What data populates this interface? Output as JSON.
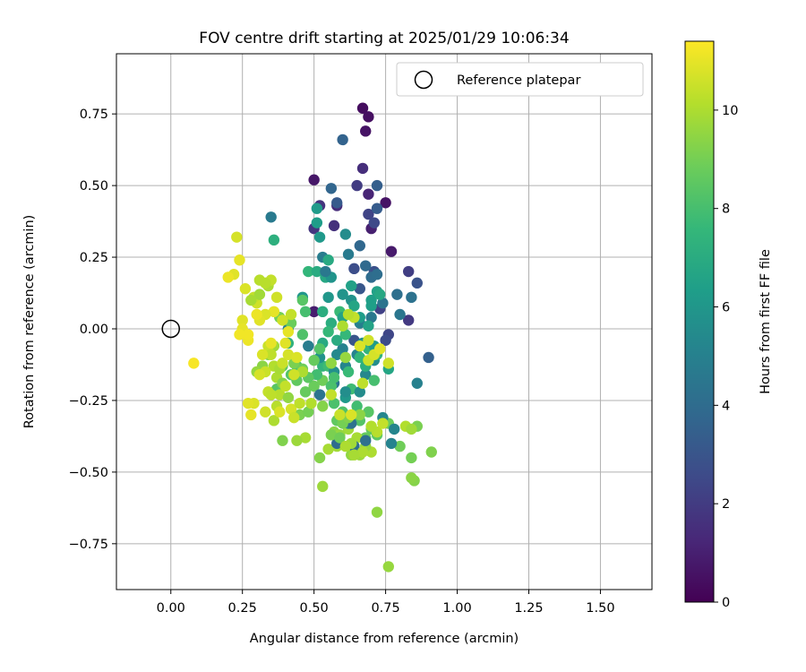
{
  "chart_data": {
    "type": "scatter",
    "title": "FOV centre drift starting at 2025/01/29 10:06:34",
    "xlabel": "Angular distance from reference (arcmin)",
    "ylabel": "Rotation from reference (arcmin)",
    "colorbar_label": "Hours from first FF file",
    "colormap": "viridis",
    "xlim": [
      -0.19,
      1.68
    ],
    "ylim": [
      -0.91,
      0.96
    ],
    "clim": [
      0,
      11.4
    ],
    "x_ticks": [
      "0.00",
      "0.25",
      "0.50",
      "0.75",
      "1.00",
      "1.25",
      "1.50"
    ],
    "y_ticks": [
      "−0.75",
      "−0.50",
      "−0.25",
      "0.00",
      "0.25",
      "0.50",
      "0.75"
    ],
    "colorbar_ticks": [
      "0",
      "2",
      "4",
      "6",
      "8",
      "10"
    ],
    "grid": true,
    "legend_position": "top-right",
    "legend": [
      "Reference platepar"
    ],
    "reference_point": {
      "x": 0.0,
      "y": 0.0
    },
    "points": [
      [
        0.67,
        0.77,
        0.4
      ],
      [
        0.69,
        0.74,
        0.5
      ],
      [
        0.68,
        0.69,
        0.6
      ],
      [
        0.5,
        0.52,
        0.7
      ],
      [
        0.75,
        0.44,
        0.6
      ],
      [
        0.77,
        0.27,
        0.8
      ],
      [
        0.5,
        0.06,
        0.9
      ],
      [
        0.7,
        0.35,
        1.0
      ],
      [
        0.69,
        0.47,
        1.2
      ],
      [
        0.67,
        0.56,
        1.5
      ],
      [
        0.57,
        0.36,
        1.6
      ],
      [
        0.58,
        0.43,
        1.4
      ],
      [
        0.52,
        0.43,
        1.7
      ],
      [
        0.5,
        0.35,
        1.8
      ],
      [
        0.65,
        0.5,
        2.0
      ],
      [
        0.83,
        0.03,
        1.9
      ],
      [
        0.83,
        0.2,
        2.1
      ],
      [
        0.73,
        0.07,
        2.2
      ],
      [
        0.69,
        0.4,
        2.3
      ],
      [
        0.71,
        0.37,
        2.5
      ],
      [
        0.76,
        -0.02,
        2.4
      ],
      [
        0.75,
        -0.04,
        2.6
      ],
      [
        0.64,
        0.21,
        2.7
      ],
      [
        0.71,
        0.2,
        2.8
      ],
      [
        0.86,
        0.16,
        2.9
      ],
      [
        0.64,
        -0.04,
        3.0
      ],
      [
        0.66,
        0.14,
        3.1
      ],
      [
        0.58,
        0.44,
        3.2
      ],
      [
        0.6,
        0.66,
        3.6
      ],
      [
        0.72,
        0.5,
        3.4
      ],
      [
        0.72,
        0.42,
        3.3
      ],
      [
        0.56,
        0.49,
        3.7
      ],
      [
        0.9,
        -0.1,
        3.5
      ],
      [
        0.66,
        0.29,
        3.8
      ],
      [
        0.68,
        0.22,
        3.9
      ],
      [
        0.7,
        0.18,
        4.0
      ],
      [
        0.72,
        0.19,
        4.1
      ],
      [
        0.79,
        0.12,
        4.2
      ],
      [
        0.84,
        0.11,
        4.3
      ],
      [
        0.74,
        0.09,
        4.4
      ],
      [
        0.8,
        0.05,
        4.5
      ],
      [
        0.7,
        0.04,
        4.6
      ],
      [
        0.62,
        0.26,
        4.7
      ],
      [
        0.53,
        0.25,
        4.8
      ],
      [
        0.66,
        0.02,
        4.9
      ],
      [
        0.6,
        -0.07,
        5.0
      ],
      [
        0.65,
        -0.09,
        5.1
      ],
      [
        0.61,
        -0.13,
        5.2
      ],
      [
        0.68,
        -0.16,
        5.3
      ],
      [
        0.58,
        -0.09,
        5.4
      ],
      [
        0.61,
        0.33,
        5.5
      ],
      [
        0.71,
        -0.11,
        5.6
      ],
      [
        0.67,
        -0.05,
        5.7
      ],
      [
        0.63,
        0.1,
        5.8
      ],
      [
        0.6,
        0.12,
        5.9
      ],
      [
        0.55,
        0.11,
        6.0
      ],
      [
        0.52,
        0.32,
        6.1
      ],
      [
        0.51,
        0.42,
        6.2
      ],
      [
        0.51,
        0.37,
        6.3
      ],
      [
        0.7,
        0.1,
        6.4
      ],
      [
        0.72,
        0.13,
        6.5
      ],
      [
        0.69,
        0.01,
        6.6
      ],
      [
        0.76,
        -0.14,
        6.7
      ],
      [
        0.73,
        0.12,
        6.8
      ],
      [
        0.53,
        -0.05,
        6.9
      ],
      [
        0.58,
        -0.04,
        7.0
      ],
      [
        0.56,
        0.02,
        7.1
      ],
      [
        0.36,
        0.31,
        7.2
      ],
      [
        0.41,
        -0.05,
        7.3
      ],
      [
        0.53,
        -0.13,
        7.4
      ],
      [
        0.48,
        0.2,
        7.5
      ],
      [
        0.55,
        -0.01,
        7.6
      ],
      [
        0.62,
        -0.15,
        7.7
      ],
      [
        0.63,
        -0.21,
        7.8
      ],
      [
        0.65,
        -0.27,
        7.9
      ],
      [
        0.71,
        -0.18,
        8.0
      ],
      [
        0.57,
        -0.26,
        8.1
      ],
      [
        0.6,
        -0.29,
        8.2
      ],
      [
        0.66,
        -0.32,
        8.3
      ],
      [
        0.69,
        -0.29,
        8.4
      ],
      [
        0.72,
        -0.37,
        8.5
      ],
      [
        0.7,
        -0.35,
        8.6
      ],
      [
        0.68,
        -0.38,
        8.7
      ],
      [
        0.76,
        -0.33,
        8.8
      ],
      [
        0.8,
        -0.41,
        8.9
      ],
      [
        0.84,
        -0.45,
        9.0
      ],
      [
        0.86,
        -0.34,
        9.1
      ],
      [
        0.91,
        -0.43,
        9.2
      ],
      [
        0.85,
        -0.53,
        9.3
      ],
      [
        0.84,
        -0.52,
        9.4
      ],
      [
        0.72,
        -0.64,
        9.5
      ],
      [
        0.76,
        -0.83,
        9.6
      ],
      [
        0.53,
        -0.55,
        9.7
      ],
      [
        0.58,
        -0.41,
        9.8
      ],
      [
        0.65,
        -0.38,
        9.9
      ],
      [
        0.7,
        -0.43,
        10.0
      ],
      [
        0.55,
        -0.42,
        9.9
      ],
      [
        0.62,
        -0.35,
        9.8
      ],
      [
        0.66,
        -0.44,
        9.7
      ],
      [
        0.68,
        -0.41,
        9.6
      ],
      [
        0.63,
        -0.44,
        9.5
      ],
      [
        0.57,
        -0.36,
        9.4
      ],
      [
        0.52,
        -0.45,
        9.3
      ],
      [
        0.39,
        -0.39,
        9.2
      ],
      [
        0.45,
        -0.3,
        9.1
      ],
      [
        0.48,
        -0.29,
        9.0
      ],
      [
        0.53,
        -0.18,
        8.9
      ],
      [
        0.5,
        -0.2,
        8.8
      ],
      [
        0.47,
        -0.22,
        8.7
      ],
      [
        0.44,
        -0.18,
        8.6
      ],
      [
        0.39,
        -0.13,
        8.5
      ],
      [
        0.37,
        -0.21,
        8.4
      ],
      [
        0.42,
        -0.16,
        8.3
      ],
      [
        0.46,
        -0.02,
        8.2
      ],
      [
        0.44,
        -0.13,
        8.1
      ],
      [
        0.47,
        0.06,
        8.0
      ],
      [
        0.51,
        -0.16,
        7.9
      ],
      [
        0.55,
        -0.13,
        7.8
      ],
      [
        0.59,
        0.06,
        7.7
      ],
      [
        0.61,
        -0.02,
        7.6
      ],
      [
        0.66,
        -0.1,
        7.5
      ],
      [
        0.69,
        -0.07,
        7.4
      ],
      [
        0.72,
        -0.09,
        7.3
      ],
      [
        0.68,
        -0.13,
        7.2
      ],
      [
        0.53,
        0.06,
        7.1
      ],
      [
        0.51,
        0.2,
        7.0
      ],
      [
        0.55,
        0.24,
        6.9
      ],
      [
        0.54,
        0.18,
        6.8
      ],
      [
        0.64,
        0.08,
        6.7
      ],
      [
        0.6,
        0.04,
        6.6
      ],
      [
        0.63,
        0.15,
        6.5
      ],
      [
        0.7,
        0.08,
        6.4
      ],
      [
        0.66,
        0.04,
        6.3
      ],
      [
        0.71,
        -0.06,
        6.2
      ],
      [
        0.61,
        -0.24,
        6.1
      ],
      [
        0.46,
        0.11,
        6.0
      ],
      [
        0.56,
        0.18,
        5.9
      ],
      [
        0.52,
        -0.1,
        5.8
      ],
      [
        0.57,
        -0.15,
        5.7
      ],
      [
        0.61,
        -0.22,
        5.6
      ],
      [
        0.66,
        -0.22,
        5.5
      ],
      [
        0.62,
        -0.33,
        5.4
      ],
      [
        0.74,
        -0.31,
        5.3
      ],
      [
        0.78,
        -0.35,
        5.2
      ],
      [
        0.77,
        -0.4,
        5.1
      ],
      [
        0.86,
        -0.19,
        5.0
      ],
      [
        0.41,
        0.0,
        4.9
      ],
      [
        0.48,
        -0.06,
        4.8
      ],
      [
        0.35,
        0.39,
        4.7
      ],
      [
        0.54,
        0.2,
        4.6
      ],
      [
        0.57,
        -0.19,
        4.5
      ],
      [
        0.52,
        -0.23,
        4.4
      ],
      [
        0.63,
        -0.33,
        4.3
      ],
      [
        0.68,
        -0.39,
        4.2
      ],
      [
        0.64,
        -0.41,
        4.1
      ],
      [
        0.58,
        -0.4,
        4.0
      ],
      [
        0.46,
        0.1,
        8.4
      ],
      [
        0.42,
        0.02,
        8.8
      ],
      [
        0.38,
        0.04,
        9.0
      ],
      [
        0.34,
        -0.09,
        9.2
      ],
      [
        0.32,
        -0.13,
        9.4
      ],
      [
        0.3,
        -0.15,
        9.6
      ],
      [
        0.36,
        -0.06,
        9.8
      ],
      [
        0.37,
        -0.17,
        10.0
      ],
      [
        0.38,
        -0.23,
        10.2
      ],
      [
        0.34,
        -0.22,
        10.4
      ],
      [
        0.33,
        -0.29,
        10.6
      ],
      [
        0.29,
        -0.26,
        10.8
      ],
      [
        0.28,
        -0.3,
        11.0
      ],
      [
        0.27,
        -0.26,
        10.9
      ],
      [
        0.42,
        -0.28,
        10.7
      ],
      [
        0.43,
        -0.31,
        10.5
      ],
      [
        0.45,
        -0.26,
        10.3
      ],
      [
        0.49,
        -0.26,
        10.1
      ],
      [
        0.47,
        -0.38,
        9.9
      ],
      [
        0.44,
        -0.39,
        9.7
      ],
      [
        0.41,
        -0.24,
        9.5
      ],
      [
        0.39,
        -0.19,
        9.3
      ],
      [
        0.43,
        -0.12,
        9.1
      ],
      [
        0.46,
        -0.14,
        8.9
      ],
      [
        0.5,
        -0.11,
        8.7
      ],
      [
        0.48,
        -0.17,
        8.5
      ],
      [
        0.52,
        -0.07,
        8.3
      ],
      [
        0.56,
        -0.2,
        8.1
      ],
      [
        0.57,
        -0.17,
        8.0
      ],
      [
        0.58,
        -0.32,
        8.6
      ],
      [
        0.6,
        -0.33,
        9.0
      ],
      [
        0.62,
        -0.31,
        9.2
      ],
      [
        0.66,
        -0.3,
        9.4
      ],
      [
        0.59,
        -0.37,
        9.6
      ],
      [
        0.63,
        -0.4,
        9.8
      ],
      [
        0.67,
        -0.43,
        10.0
      ],
      [
        0.72,
        -0.36,
        10.2
      ],
      [
        0.74,
        -0.33,
        10.4
      ],
      [
        0.7,
        -0.34,
        10.1
      ],
      [
        0.67,
        -0.19,
        10.3
      ],
      [
        0.69,
        -0.11,
        10.5
      ],
      [
        0.71,
        -0.09,
        10.7
      ],
      [
        0.73,
        -0.07,
        10.9
      ],
      [
        0.69,
        -0.04,
        10.6
      ],
      [
        0.66,
        -0.06,
        10.8
      ],
      [
        0.64,
        0.04,
        10.4
      ],
      [
        0.62,
        0.05,
        10.2
      ],
      [
        0.6,
        0.01,
        10.0
      ],
      [
        0.61,
        -0.1,
        9.6
      ],
      [
        0.56,
        -0.12,
        9.5
      ],
      [
        0.53,
        -0.27,
        9.3
      ],
      [
        0.56,
        -0.37,
        9.1
      ],
      [
        0.59,
        -0.38,
        8.9
      ],
      [
        0.61,
        -0.41,
        10.0
      ],
      [
        0.64,
        -0.44,
        9.9
      ],
      [
        0.46,
        -0.15,
        10.0
      ],
      [
        0.4,
        -0.05,
        10.9
      ],
      [
        0.41,
        -0.01,
        11.0
      ],
      [
        0.36,
        0.06,
        11.0
      ],
      [
        0.33,
        0.05,
        10.8
      ],
      [
        0.31,
        0.03,
        10.9
      ],
      [
        0.3,
        0.09,
        10.6
      ],
      [
        0.29,
        0.11,
        10.4
      ],
      [
        0.31,
        0.17,
        10.2
      ],
      [
        0.34,
        0.15,
        10.0
      ],
      [
        0.31,
        0.12,
        9.8
      ],
      [
        0.28,
        0.1,
        9.9
      ],
      [
        0.26,
        0.14,
        10.8
      ],
      [
        0.22,
        0.19,
        10.9
      ],
      [
        0.24,
        0.24,
        11.0
      ],
      [
        0.2,
        0.18,
        11.1
      ],
      [
        0.23,
        0.32,
        10.7
      ],
      [
        0.25,
        0.03,
        10.9
      ],
      [
        0.25,
        0.0,
        11.0
      ],
      [
        0.27,
        -0.04,
        11.1
      ],
      [
        0.24,
        -0.02,
        11.2
      ],
      [
        0.08,
        -0.12,
        11.3
      ],
      [
        0.34,
        -0.06,
        10.5
      ],
      [
        0.35,
        -0.09,
        10.3
      ],
      [
        0.36,
        -0.13,
        10.1
      ],
      [
        0.38,
        -0.14,
        9.9
      ],
      [
        0.39,
        -0.12,
        10.5
      ],
      [
        0.41,
        -0.09,
        10.7
      ],
      [
        0.44,
        -0.1,
        10.8
      ],
      [
        0.43,
        -0.16,
        10.6
      ],
      [
        0.4,
        -0.2,
        10.4
      ],
      [
        0.37,
        -0.27,
        10.2
      ],
      [
        0.36,
        -0.32,
        10.0
      ],
      [
        0.35,
        -0.05,
        11.0
      ],
      [
        0.32,
        -0.09,
        10.8
      ],
      [
        0.3,
        0.05,
        11.1
      ],
      [
        0.27,
        -0.02,
        11.2
      ],
      [
        0.37,
        0.11,
        10.6
      ],
      [
        0.35,
        0.17,
        10.4
      ],
      [
        0.33,
        0.16,
        10.2
      ],
      [
        0.39,
        0.03,
        10.6
      ],
      [
        0.42,
        0.05,
        10.4
      ],
      [
        0.33,
        -0.15,
        10.5
      ],
      [
        0.31,
        -0.16,
        10.7
      ],
      [
        0.35,
        -0.23,
        10.3
      ],
      [
        0.38,
        -0.29,
        10.8
      ],
      [
        0.82,
        -0.34,
        10.1
      ],
      [
        0.84,
        -0.35,
        9.8
      ],
      [
        0.76,
        -0.12,
        10.6
      ],
      [
        0.59,
        -0.3,
        10.5
      ],
      [
        0.63,
        -0.3,
        10.8
      ],
      [
        0.56,
        -0.23,
        10.4
      ]
    ]
  }
}
